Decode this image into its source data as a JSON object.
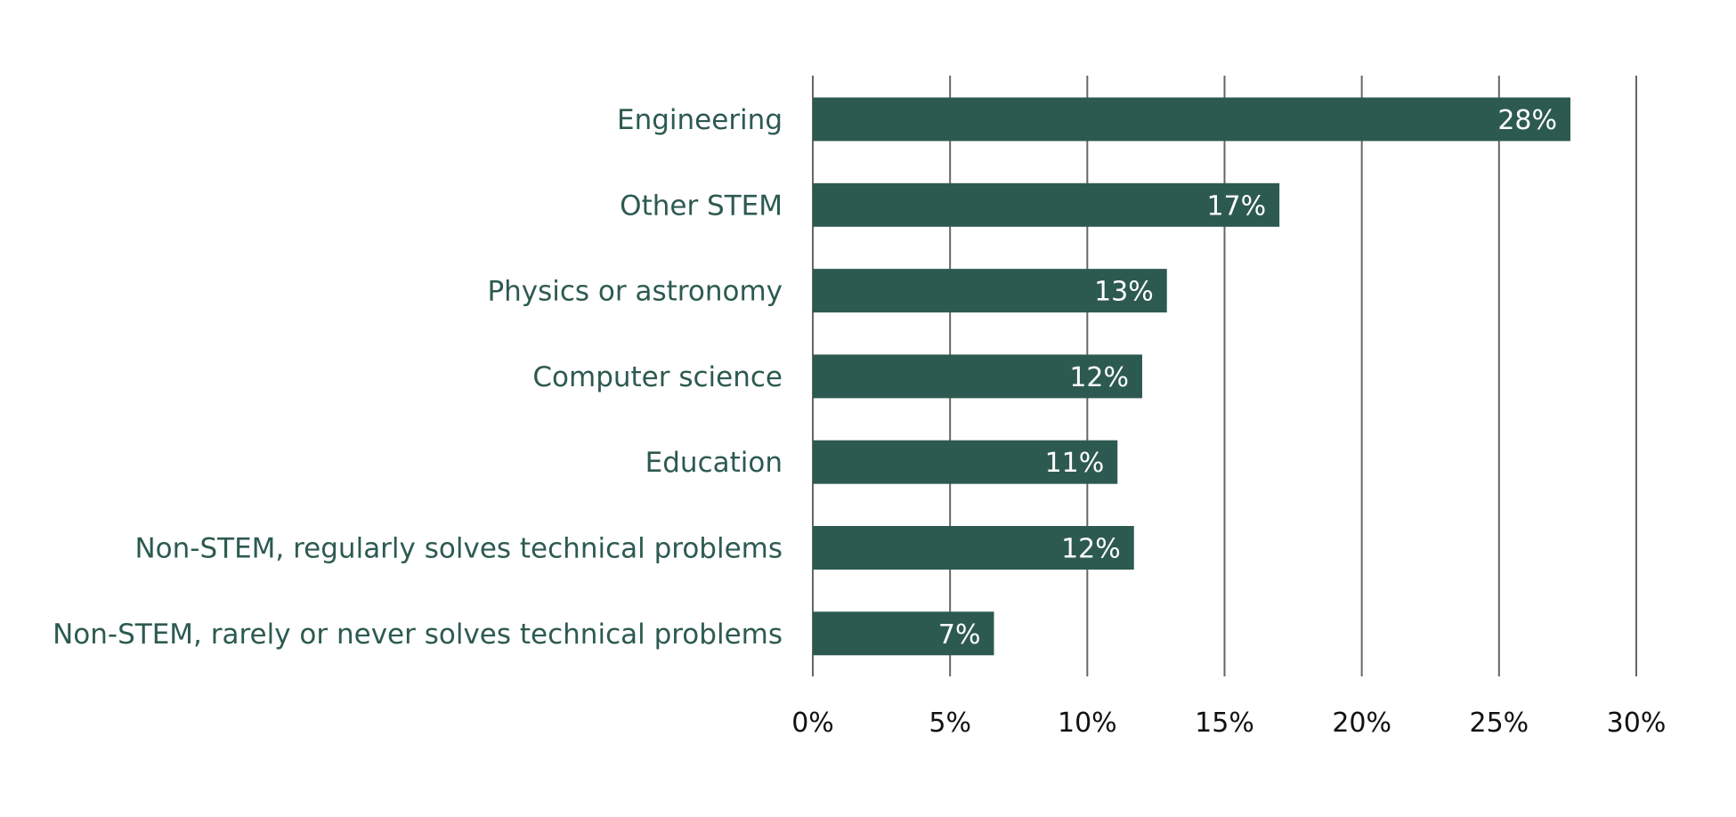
{
  "chart_data": {
    "type": "bar",
    "orientation": "horizontal",
    "categories": [
      "Engineering",
      "Other STEM",
      "Physics or astronomy",
      "Computer science",
      "Education",
      "Non-STEM, regularly solves technical problems",
      "Non-STEM, rarely or never solves technical problems"
    ],
    "values": [
      27.6,
      17.0,
      12.9,
      12.0,
      11.1,
      11.7,
      6.6
    ],
    "value_labels": [
      "28%",
      "17%",
      "13%",
      "12%",
      "11%",
      "12%",
      "7%"
    ],
    "xlim": [
      0,
      30
    ],
    "x_ticks": [
      0,
      5,
      10,
      15,
      20,
      25,
      30
    ],
    "x_tick_labels": [
      "0%",
      "5%",
      "10%",
      "15%",
      "20%",
      "25%",
      "30%"
    ],
    "title": "",
    "xlabel": "",
    "ylabel": "",
    "grid": "vertical",
    "legend": "none",
    "bar_color": "#2d5a50",
    "category_label_color": "#2d5a50",
    "value_label_color": "#ffffff",
    "gridline_color": "#666666"
  }
}
